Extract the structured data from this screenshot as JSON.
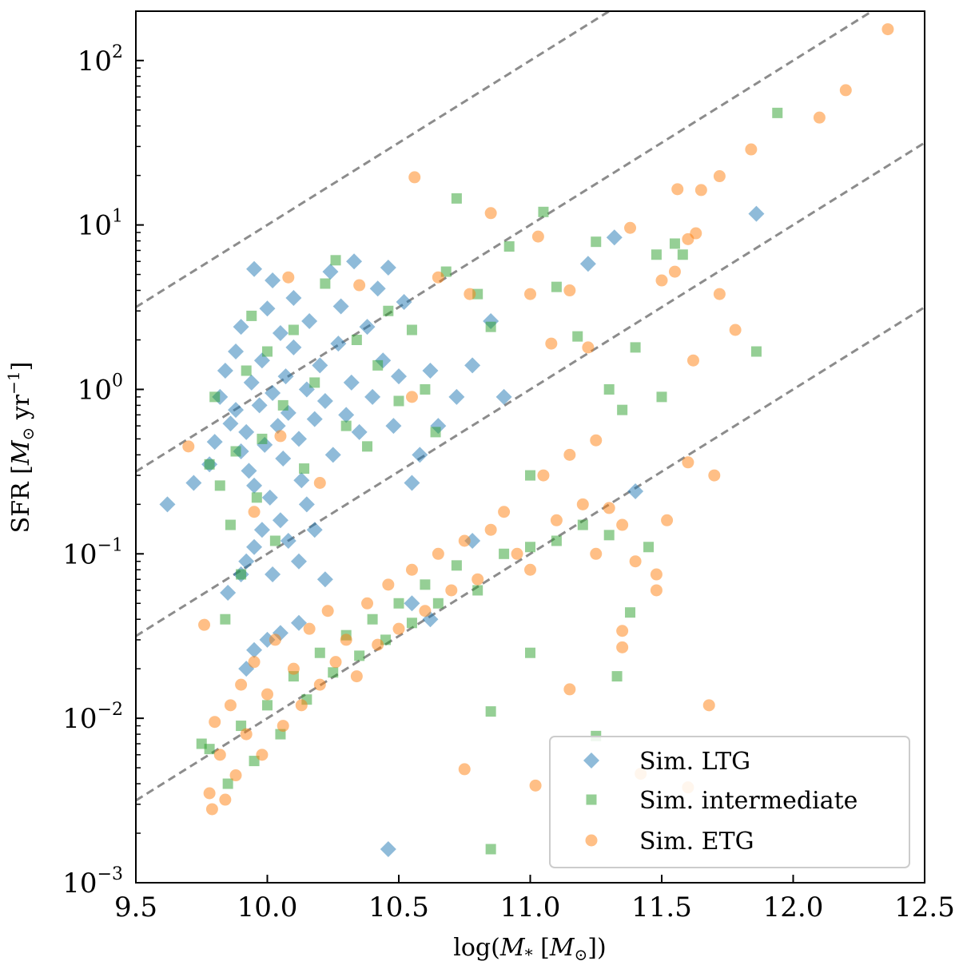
{
  "chart_data": {
    "type": "scatter",
    "title": "",
    "xlabel": "log(M* [M⊙])",
    "ylabel": "SFR [M⊙ yr⁻¹]",
    "xlim": [
      9.5,
      12.5
    ],
    "ylim_log10": [
      -3,
      2.3
    ],
    "yscale": "log",
    "x_ticks": [
      9.5,
      10.0,
      10.5,
      11.0,
      11.5,
      12.0,
      12.5
    ],
    "x_tick_labels": [
      "9.5",
      "10.0",
      "10.5",
      "11.0",
      "11.5",
      "12.0",
      "12.5"
    ],
    "y_tick_exponents": [
      -3,
      -2,
      -1,
      0,
      1,
      2
    ],
    "y_tick_base": "10",
    "legend_position": "lower-right",
    "reference_lines": {
      "style": "dashed",
      "color": "#8c8c8c",
      "slope": 1,
      "lines": [
        {
          "log_sfr_at_9_5": 0.5
        },
        {
          "log_sfr_at_9_5": -0.5
        },
        {
          "log_sfr_at_9_5": -1.5
        },
        {
          "log_sfr_at_9_5": -2.5
        }
      ]
    },
    "series": [
      {
        "name": "Sim. LTG",
        "marker": "diamond",
        "color": "#1f77b4",
        "points": [
          [
            9.62,
            0.2
          ],
          [
            9.72,
            0.27
          ],
          [
            9.78,
            0.35
          ],
          [
            9.8,
            0.48
          ],
          [
            9.82,
            0.9
          ],
          [
            9.84,
            1.3
          ],
          [
            9.86,
            0.62
          ],
          [
            9.88,
            0.75
          ],
          [
            9.88,
            1.7
          ],
          [
            9.9,
            0.42
          ],
          [
            9.9,
            2.4
          ],
          [
            9.92,
            0.55
          ],
          [
            9.93,
            0.32
          ],
          [
            9.94,
            1.1
          ],
          [
            9.95,
            0.26
          ],
          [
            9.95,
            5.4
          ],
          [
            9.97,
            0.8
          ],
          [
            9.98,
            1.5
          ],
          [
            9.99,
            0.46
          ],
          [
            10.0,
            3.1
          ],
          [
            10.01,
            0.22
          ],
          [
            10.02,
            0.95
          ],
          [
            10.02,
            4.6
          ],
          [
            10.04,
            0.6
          ],
          [
            10.05,
            2.2
          ],
          [
            10.06,
            0.38
          ],
          [
            10.07,
            1.2
          ],
          [
            10.08,
            0.72
          ],
          [
            10.1,
            1.8
          ],
          [
            10.1,
            3.6
          ],
          [
            10.12,
            0.5
          ],
          [
            10.13,
            0.28
          ],
          [
            10.15,
            1.0
          ],
          [
            10.16,
            2.6
          ],
          [
            10.18,
            0.66
          ],
          [
            10.2,
            1.4
          ],
          [
            10.22,
            0.85
          ],
          [
            10.24,
            5.2
          ],
          [
            10.25,
            0.4
          ],
          [
            10.27,
            1.9
          ],
          [
            10.28,
            3.2
          ],
          [
            10.3,
            0.7
          ],
          [
            10.32,
            1.1
          ],
          [
            10.33,
            6.0
          ],
          [
            10.35,
            0.55
          ],
          [
            10.38,
            2.4
          ],
          [
            10.4,
            0.9
          ],
          [
            10.42,
            4.1
          ],
          [
            10.44,
            1.5
          ],
          [
            10.46,
            5.5
          ],
          [
            10.48,
            0.6
          ],
          [
            10.5,
            1.2
          ],
          [
            10.52,
            3.4
          ],
          [
            10.55,
            0.27
          ],
          [
            10.58,
            0.4
          ],
          [
            10.62,
            1.3
          ],
          [
            10.65,
            0.6
          ],
          [
            10.72,
            0.9
          ],
          [
            10.78,
            1.4
          ],
          [
            10.85,
            2.6
          ],
          [
            10.9,
            0.9
          ],
          [
            11.22,
            5.8
          ],
          [
            11.32,
            8.4
          ],
          [
            11.86,
            11.7
          ],
          [
            9.85,
            0.058
          ],
          [
            9.9,
            0.075
          ],
          [
            9.92,
            0.09
          ],
          [
            9.95,
            0.11
          ],
          [
            9.98,
            0.14
          ],
          [
            10.02,
            0.075
          ],
          [
            10.05,
            0.16
          ],
          [
            10.08,
            0.12
          ],
          [
            10.12,
            0.09
          ],
          [
            10.15,
            0.2
          ],
          [
            10.18,
            0.14
          ],
          [
            10.22,
            0.07
          ],
          [
            9.92,
            0.02
          ],
          [
            9.95,
            0.026
          ],
          [
            10.0,
            0.03
          ],
          [
            10.05,
            0.033
          ],
          [
            10.12,
            0.038
          ],
          [
            10.55,
            0.05
          ],
          [
            10.62,
            0.04
          ],
          [
            10.78,
            0.12
          ],
          [
            11.4,
            0.24
          ],
          [
            10.46,
            0.0016
          ]
        ]
      },
      {
        "name": "Sim. intermediate",
        "marker": "square",
        "color": "#2ca02c",
        "points": [
          [
            9.75,
            0.007
          ],
          [
            9.78,
            0.35
          ],
          [
            9.8,
            0.9
          ],
          [
            9.82,
            0.26
          ],
          [
            9.84,
            0.04
          ],
          [
            9.86,
            0.15
          ],
          [
            9.88,
            0.42
          ],
          [
            9.9,
            0.075
          ],
          [
            9.92,
            1.3
          ],
          [
            9.94,
            2.8
          ],
          [
            9.96,
            0.22
          ],
          [
            9.98,
            0.5
          ],
          [
            10.0,
            1.7
          ],
          [
            10.03,
            0.12
          ],
          [
            10.06,
            0.8
          ],
          [
            10.1,
            2.3
          ],
          [
            10.14,
            0.33
          ],
          [
            10.18,
            1.1
          ],
          [
            10.22,
            4.4
          ],
          [
            10.26,
            6.1
          ],
          [
            10.3,
            0.6
          ],
          [
            10.34,
            2.0
          ],
          [
            10.38,
            0.45
          ],
          [
            10.42,
            1.4
          ],
          [
            10.46,
            3.0
          ],
          [
            10.5,
            0.85
          ],
          [
            10.55,
            2.3
          ],
          [
            10.6,
            1.0
          ],
          [
            10.64,
            0.55
          ],
          [
            10.68,
            5.2
          ],
          [
            10.72,
            14.5
          ],
          [
            10.8,
            3.8
          ],
          [
            10.85,
            2.4
          ],
          [
            10.92,
            7.4
          ],
          [
            11.0,
            0.3
          ],
          [
            11.05,
            12.0
          ],
          [
            11.1,
            4.2
          ],
          [
            11.18,
            2.1
          ],
          [
            11.25,
            7.9
          ],
          [
            11.3,
            1.0
          ],
          [
            11.35,
            0.75
          ],
          [
            11.4,
            1.8
          ],
          [
            11.48,
            6.6
          ],
          [
            11.5,
            0.9
          ],
          [
            11.55,
            7.7
          ],
          [
            11.58,
            6.6
          ],
          [
            11.86,
            1.7
          ],
          [
            11.94,
            48.0
          ],
          [
            9.78,
            0.0065
          ],
          [
            9.85,
            0.004
          ],
          [
            9.9,
            0.009
          ],
          [
            9.95,
            0.0055
          ],
          [
            10.0,
            0.012
          ],
          [
            10.05,
            0.008
          ],
          [
            10.1,
            0.018
          ],
          [
            10.15,
            0.013
          ],
          [
            10.2,
            0.025
          ],
          [
            10.25,
            0.019
          ],
          [
            10.3,
            0.032
          ],
          [
            10.35,
            0.024
          ],
          [
            10.4,
            0.04
          ],
          [
            10.45,
            0.03
          ],
          [
            10.5,
            0.05
          ],
          [
            10.55,
            0.038
          ],
          [
            10.6,
            0.065
          ],
          [
            10.65,
            0.05
          ],
          [
            10.72,
            0.085
          ],
          [
            10.8,
            0.06
          ],
          [
            10.9,
            0.1
          ],
          [
            11.0,
            0.11
          ],
          [
            11.1,
            0.12
          ],
          [
            11.2,
            0.15
          ],
          [
            11.3,
            0.13
          ],
          [
            11.38,
            0.044
          ],
          [
            11.45,
            0.11
          ],
          [
            11.33,
            0.018
          ],
          [
            11.0,
            0.025
          ],
          [
            10.85,
            0.011
          ],
          [
            11.25,
            0.0078
          ],
          [
            10.85,
            0.0016
          ]
        ]
      },
      {
        "name": "Sim. ETG",
        "marker": "circle",
        "color": "#ff7f0e",
        "points": [
          [
            9.7,
            0.45
          ],
          [
            9.76,
            0.037
          ],
          [
            9.78,
            0.0035
          ],
          [
            9.79,
            0.0028
          ],
          [
            9.8,
            0.0095
          ],
          [
            9.82,
            0.006
          ],
          [
            9.84,
            0.0032
          ],
          [
            9.86,
            0.012
          ],
          [
            9.88,
            0.0045
          ],
          [
            9.9,
            0.016
          ],
          [
            9.92,
            0.008
          ],
          [
            9.95,
            0.022
          ],
          [
            9.98,
            0.006
          ],
          [
            10.0,
            0.014
          ],
          [
            10.03,
            0.03
          ],
          [
            10.06,
            0.009
          ],
          [
            10.1,
            0.02
          ],
          [
            10.13,
            0.012
          ],
          [
            10.16,
            0.035
          ],
          [
            10.2,
            0.016
          ],
          [
            10.23,
            0.045
          ],
          [
            10.26,
            0.022
          ],
          [
            10.3,
            0.03
          ],
          [
            10.34,
            0.018
          ],
          [
            10.38,
            0.05
          ],
          [
            10.42,
            0.028
          ],
          [
            10.46,
            0.065
          ],
          [
            10.5,
            0.035
          ],
          [
            10.55,
            0.08
          ],
          [
            10.6,
            0.045
          ],
          [
            10.65,
            0.1
          ],
          [
            10.7,
            0.06
          ],
          [
            10.75,
            0.12
          ],
          [
            10.8,
            0.07
          ],
          [
            10.85,
            0.14
          ],
          [
            10.9,
            0.18
          ],
          [
            10.95,
            0.1
          ],
          [
            11.0,
            0.08
          ],
          [
            11.05,
            0.3
          ],
          [
            11.1,
            0.16
          ],
          [
            11.15,
            0.4
          ],
          [
            11.2,
            0.2
          ],
          [
            11.25,
            0.1
          ],
          [
            11.3,
            0.19
          ],
          [
            11.35,
            0.15
          ],
          [
            11.4,
            0.09
          ],
          [
            11.48,
            0.06
          ],
          [
            11.52,
            0.16
          ],
          [
            11.6,
            0.36
          ],
          [
            11.7,
            0.3
          ],
          [
            10.08,
            4.8
          ],
          [
            10.35,
            4.3
          ],
          [
            10.56,
            19.5
          ],
          [
            10.65,
            4.8
          ],
          [
            10.77,
            3.8
          ],
          [
            10.85,
            11.8
          ],
          [
            11.0,
            3.8
          ],
          [
            11.03,
            8.5
          ],
          [
            11.08,
            1.9
          ],
          [
            11.15,
            4.0
          ],
          [
            11.25,
            0.49
          ],
          [
            11.38,
            9.6
          ],
          [
            11.5,
            4.6
          ],
          [
            11.55,
            5.2
          ],
          [
            11.56,
            16.5
          ],
          [
            11.6,
            8.2
          ],
          [
            11.63,
            8.9
          ],
          [
            11.65,
            16.3
          ],
          [
            11.72,
            19.8
          ],
          [
            11.72,
            3.8
          ],
          [
            11.78,
            2.3
          ],
          [
            11.84,
            28.8
          ],
          [
            11.62,
            1.5
          ],
          [
            12.1,
            45.0
          ],
          [
            12.2,
            66.0
          ],
          [
            12.36,
            155.0
          ],
          [
            11.68,
            0.012
          ],
          [
            11.6,
            0.0038
          ],
          [
            11.42,
            0.0046
          ],
          [
            11.35,
            0.034
          ],
          [
            11.35,
            0.027
          ],
          [
            11.15,
            0.015
          ],
          [
            11.02,
            0.0039
          ],
          [
            10.75,
            0.0049
          ],
          [
            10.55,
            0.9
          ],
          [
            10.2,
            0.27
          ],
          [
            10.05,
            0.52
          ],
          [
            9.95,
            0.18
          ],
          [
            11.22,
            1.8
          ],
          [
            11.48,
            0.075
          ]
        ]
      }
    ]
  }
}
